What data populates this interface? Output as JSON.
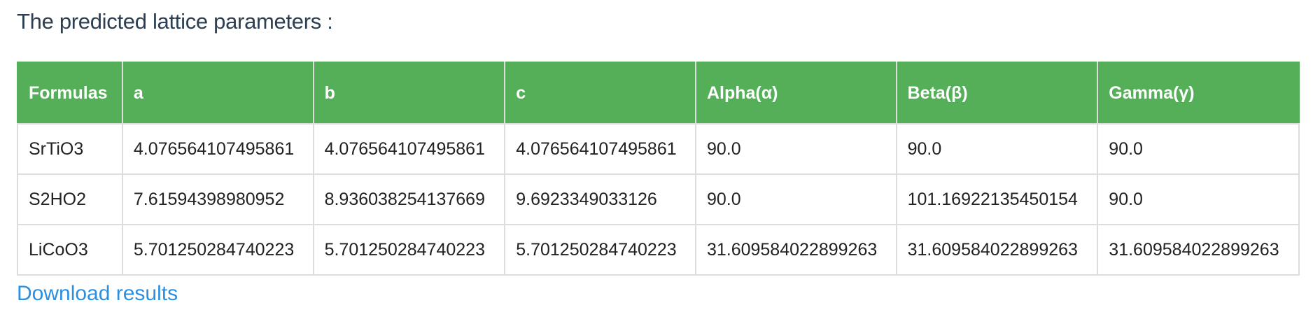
{
  "heading": "The predicted lattice parameters :",
  "table": {
    "headers": [
      "Formulas",
      "a",
      "b",
      "c",
      "Alpha(α)",
      "Beta(β)",
      "Gamma(γ)"
    ],
    "rows": [
      [
        "SrTiO3",
        "4.076564107495861",
        "4.076564107495861",
        "4.076564107495861",
        "90.0",
        "90.0",
        "90.0"
      ],
      [
        "S2HO2",
        "7.61594398980952",
        "8.936038254137669",
        "9.6923349033126",
        "90.0",
        "101.16922135450154",
        "90.0"
      ],
      [
        "LiCoO3",
        "5.701250284740223",
        "5.701250284740223",
        "5.701250284740223",
        "31.609584022899263",
        "31.609584022899263",
        "31.609584022899263"
      ]
    ]
  },
  "download_link": "Download results",
  "colors": {
    "header_bg": "#55ae58",
    "header_text": "#ffffff",
    "heading_text": "#2c3e50",
    "link": "#2c8fe0",
    "border": "#dddddd"
  }
}
